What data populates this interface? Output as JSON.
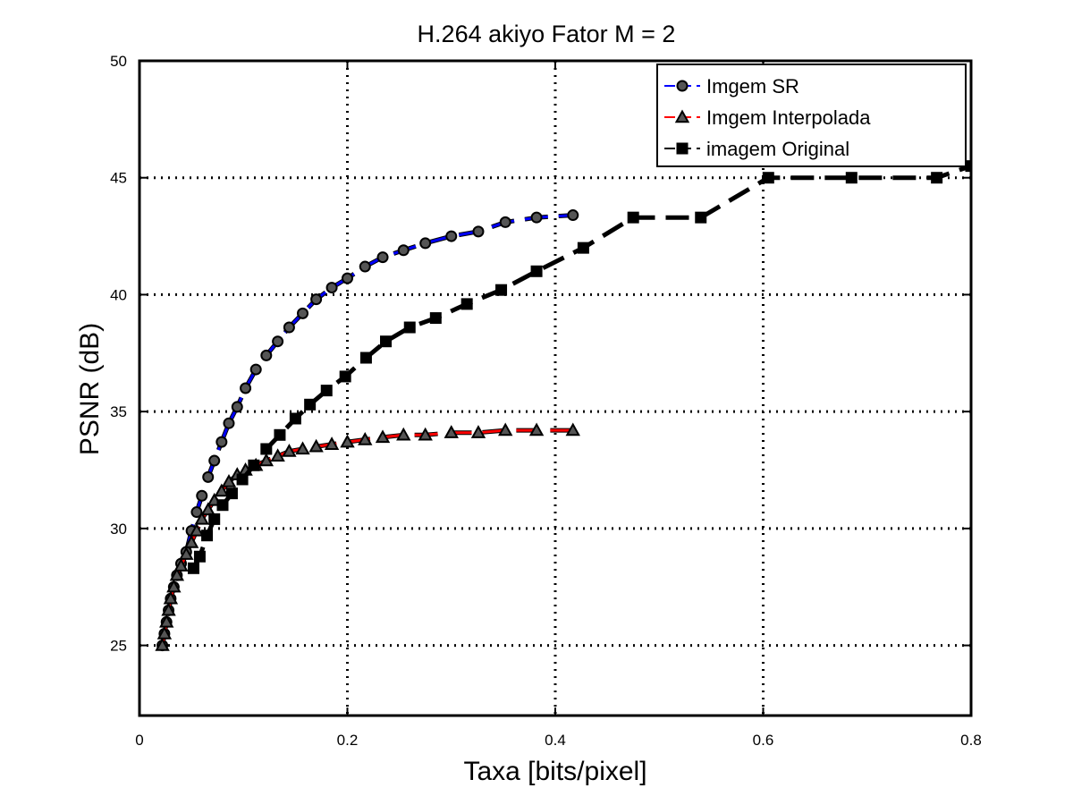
{
  "chart_data": {
    "type": "line",
    "title": "H.264 akiyo Fator M = 2",
    "xlabel": "Taxa [bits/pixel]",
    "ylabel": "PSNR (dB)",
    "xlim": [
      0,
      0.8
    ],
    "ylim": [
      22,
      50
    ],
    "xticks": [
      0,
      0.2,
      0.4,
      0.6,
      0.8
    ],
    "xtick_labels": [
      "0",
      "0.2",
      "0.4",
      "0.6",
      "0.8"
    ],
    "yticks": [
      25,
      30,
      35,
      40,
      45,
      50
    ],
    "ytick_labels": [
      "25",
      "30",
      "35",
      "40",
      "45",
      "50"
    ],
    "grid": true,
    "legend_position": "top-right",
    "series": [
      {
        "name": "Imgem SR",
        "color": "#0000ff",
        "marker": "circle",
        "x": [
          0.022,
          0.024,
          0.026,
          0.028,
          0.03,
          0.033,
          0.036,
          0.04,
          0.045,
          0.05,
          0.055,
          0.06,
          0.066,
          0.072,
          0.079,
          0.086,
          0.094,
          0.102,
          0.112,
          0.122,
          0.133,
          0.144,
          0.157,
          0.17,
          0.185,
          0.2,
          0.217,
          0.234,
          0.254,
          0.275,
          0.3,
          0.326,
          0.352,
          0.382,
          0.417
        ],
        "y": [
          25.0,
          25.5,
          26.0,
          26.5,
          27.0,
          27.5,
          28.0,
          28.5,
          29.0,
          29.9,
          30.7,
          31.4,
          32.2,
          32.9,
          33.7,
          34.5,
          35.2,
          36.0,
          36.8,
          37.4,
          38.0,
          38.6,
          39.2,
          39.8,
          40.3,
          40.7,
          41.2,
          41.6,
          41.9,
          42.2,
          42.5,
          42.7,
          43.1,
          43.3,
          43.4
        ]
      },
      {
        "name": "Imgem Interpolada",
        "color": "#ff0000",
        "marker": "triangle",
        "x": [
          0.022,
          0.024,
          0.026,
          0.028,
          0.03,
          0.033,
          0.036,
          0.04,
          0.045,
          0.05,
          0.055,
          0.06,
          0.066,
          0.072,
          0.079,
          0.086,
          0.094,
          0.102,
          0.112,
          0.122,
          0.133,
          0.144,
          0.157,
          0.17,
          0.185,
          0.2,
          0.217,
          0.234,
          0.254,
          0.275,
          0.3,
          0.326,
          0.352,
          0.382,
          0.417
        ],
        "y": [
          25.0,
          25.5,
          26.0,
          26.5,
          27.0,
          27.5,
          28.0,
          28.4,
          28.9,
          29.4,
          29.9,
          30.4,
          30.8,
          31.2,
          31.6,
          32.0,
          32.3,
          32.5,
          32.7,
          32.9,
          33.1,
          33.3,
          33.4,
          33.5,
          33.6,
          33.7,
          33.8,
          33.9,
          34.0,
          34.0,
          34.1,
          34.1,
          34.2,
          34.2,
          34.2
        ]
      },
      {
        "name": "imagem Original",
        "color": "#000000",
        "marker": "square",
        "x": [
          0.052,
          0.058,
          0.065,
          0.072,
          0.08,
          0.089,
          0.099,
          0.11,
          0.122,
          0.135,
          0.15,
          0.164,
          0.18,
          0.198,
          0.218,
          0.237,
          0.26,
          0.285,
          0.315,
          0.348,
          0.382,
          0.427,
          0.475,
          0.54,
          0.605,
          0.685,
          0.767,
          0.8
        ],
        "y": [
          28.3,
          28.8,
          29.7,
          30.4,
          31.0,
          31.5,
          32.1,
          32.7,
          33.4,
          34.0,
          34.7,
          35.3,
          35.9,
          36.5,
          37.3,
          38.0,
          38.6,
          39.0,
          39.6,
          40.2,
          41.0,
          42.0,
          43.3,
          43.3,
          45.0,
          45.0,
          45.0,
          45.5
        ]
      }
    ]
  }
}
